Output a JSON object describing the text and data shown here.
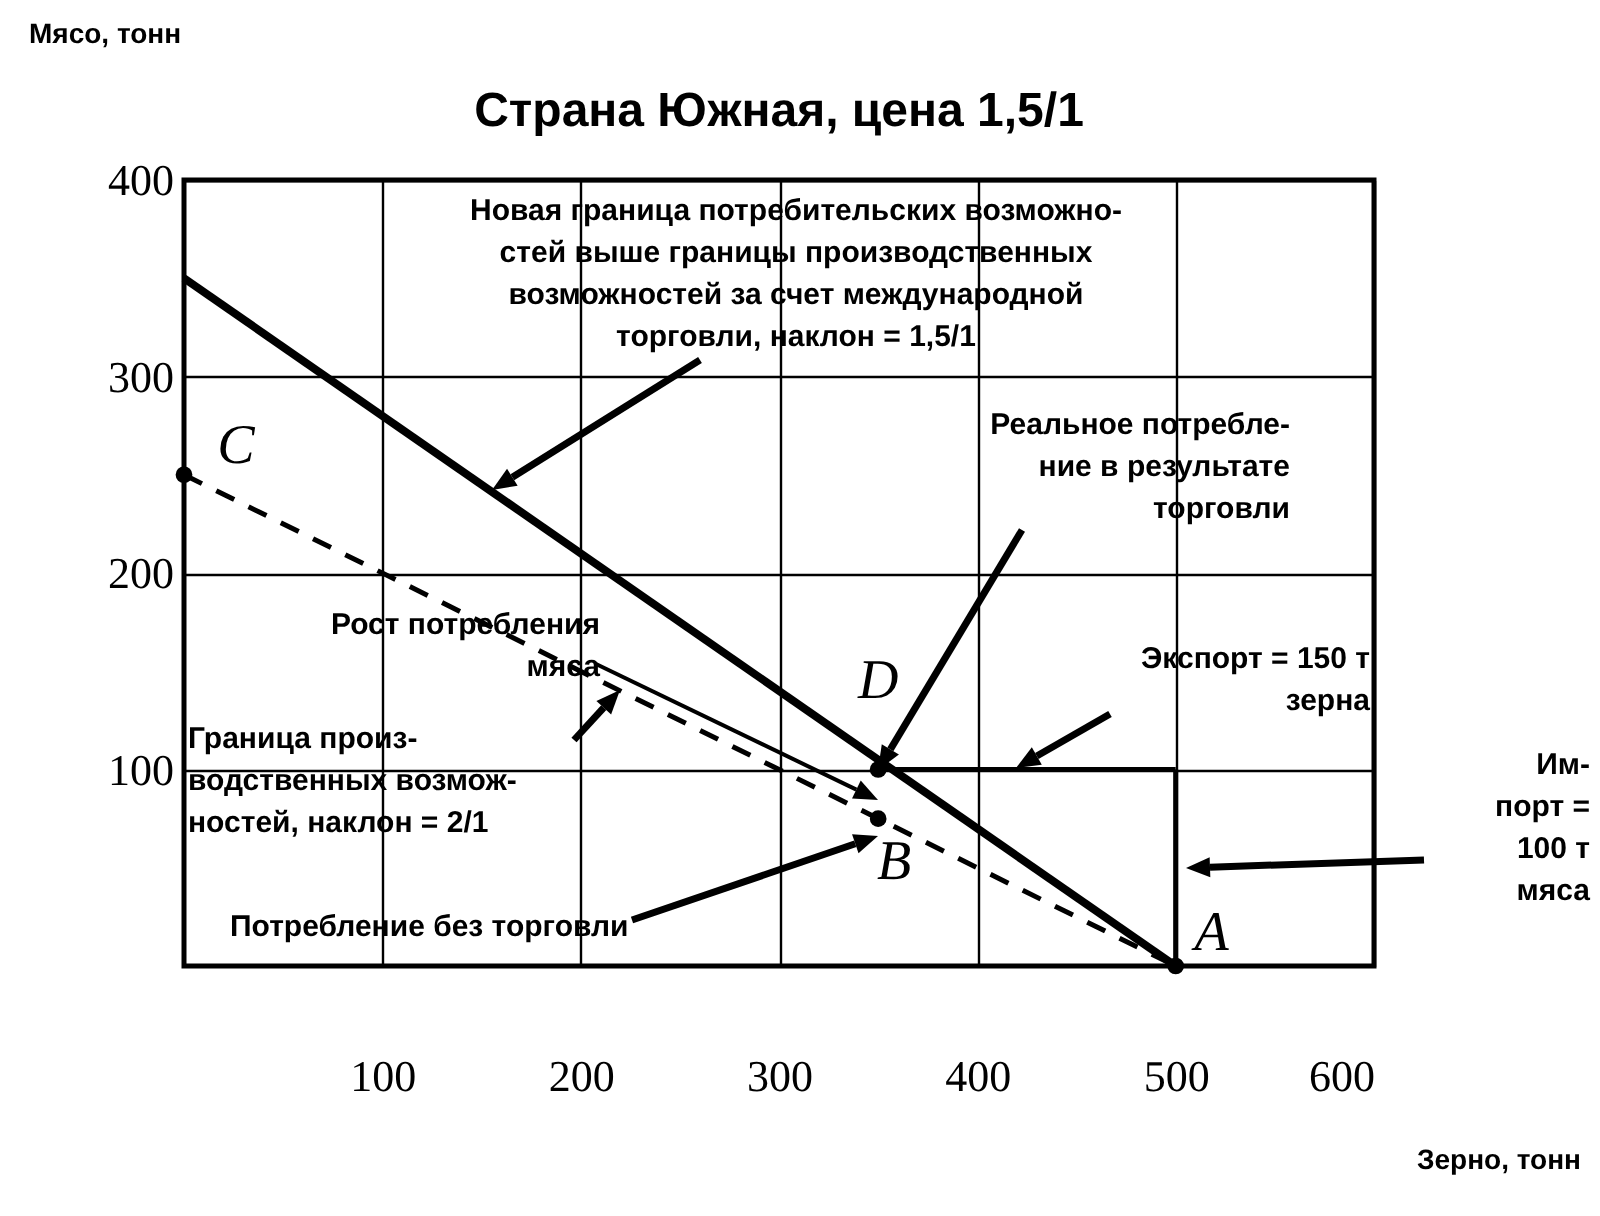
{
  "chart_data": {
    "type": "line",
    "title": "Страна Южная, цена 1,5/1",
    "xlabel": "Зерно, тонн",
    "ylabel": "Мясо, тонн",
    "xlim": [
      0,
      600
    ],
    "ylim": [
      0,
      400
    ],
    "xticks": [
      100,
      200,
      300,
      400,
      500,
      600
    ],
    "yticks": [
      100,
      200,
      300,
      400
    ],
    "grid": true,
    "series": [
      {
        "x": [
          0,
          500
        ],
        "values": [
          350,
          0
        ],
        "color": "#000000",
        "line_style": "solid"
      },
      {
        "x": [
          0,
          500
        ],
        "values": [
          250,
          0
        ],
        "color": "#000000",
        "line_style": "dashed"
      },
      {
        "x": [
          350,
          500
        ],
        "values": [
          100,
          100
        ],
        "color": "#000000",
        "line_style": "solid"
      },
      {
        "x": [
          500,
          500
        ],
        "values": [
          0,
          100
        ],
        "color": "#000000",
        "line_style": "solid"
      },
      {
        "type": "scatter",
        "x": [
          0,
          350,
          350,
          500
        ],
        "values": [
          250,
          100,
          75,
          0
        ],
        "color": "#000000",
        "marker": "circle"
      }
    ],
    "annotations": [
      {
        "text": "C",
        "x": 0,
        "y": 250
      },
      {
        "text": "D",
        "x": 350,
        "y": 100
      },
      {
        "text": "B",
        "x": 350,
        "y": 75
      },
      {
        "text": "A",
        "x": 500,
        "y": 0
      },
      "Новая граница потребительских возможно-\nстей выше границы производственных\nвозможностей за счет международной\nторговли, наклон = 1,5/1",
      "Реальное потребле-\nние в результате\nторговли",
      "Рост потребления\nмяса",
      "Граница произ-\nводственных возмож-\nностей, наклон = 2/1",
      "Потребление без торговли",
      "Экспорт = 150 т\nзерна",
      "Им-\nпорт =\n100 т\nмяса"
    ]
  }
}
